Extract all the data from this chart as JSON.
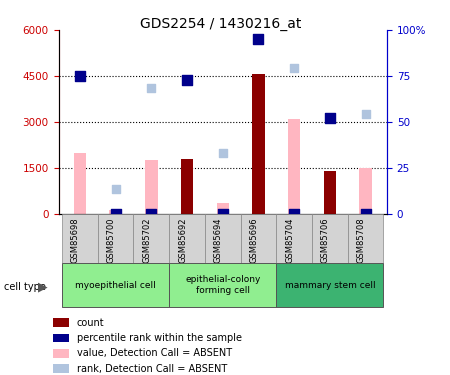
{
  "title": "GDS2254 / 1430216_at",
  "samples": [
    "GSM85698",
    "GSM85700",
    "GSM85702",
    "GSM85692",
    "GSM85694",
    "GSM85696",
    "GSM85704",
    "GSM85706",
    "GSM85708"
  ],
  "groups": [
    {
      "label": "myoepithelial cell",
      "start": 0,
      "end": 3,
      "color": "#90EE90"
    },
    {
      "label": "epithelial-colony\nforming cell",
      "start": 3,
      "end": 6,
      "color": "#90EE90"
    },
    {
      "label": "mammary stem cell",
      "start": 6,
      "end": 9,
      "color": "#3CB371"
    }
  ],
  "count_values": [
    0,
    0,
    0,
    1800,
    0,
    4550,
    0,
    1380,
    0
  ],
  "percentile_rank_values": [
    75,
    0,
    0,
    73,
    0,
    95,
    0,
    52,
    0
  ],
  "value_absent": [
    2000,
    130,
    1750,
    0,
    350,
    0,
    3100,
    0,
    1500
  ],
  "rank_absent": [
    0,
    800,
    4100,
    0,
    2000,
    0,
    4750,
    0,
    3250
  ],
  "count_color": "#8B0000",
  "percentile_color": "#00008B",
  "value_absent_color": "#FFB6C1",
  "rank_absent_color": "#B0C4DE",
  "left_ylim": [
    0,
    6000
  ],
  "right_ylim": [
    0,
    100
  ],
  "left_yticks": [
    0,
    1500,
    3000,
    4500,
    6000
  ],
  "right_yticks": [
    0,
    25,
    50,
    75,
    100
  ],
  "left_yticklabels": [
    "0",
    "1500",
    "3000",
    "4500",
    "6000"
  ],
  "right_yticklabels": [
    "0",
    "25",
    "50",
    "75",
    "100%"
  ],
  "legend_labels": [
    "count",
    "percentile rank within the sample",
    "value, Detection Call = ABSENT",
    "rank, Detection Call = ABSENT"
  ],
  "legend_colors": [
    "#8B0000",
    "#00008B",
    "#FFB6C1",
    "#B0C4DE"
  ]
}
